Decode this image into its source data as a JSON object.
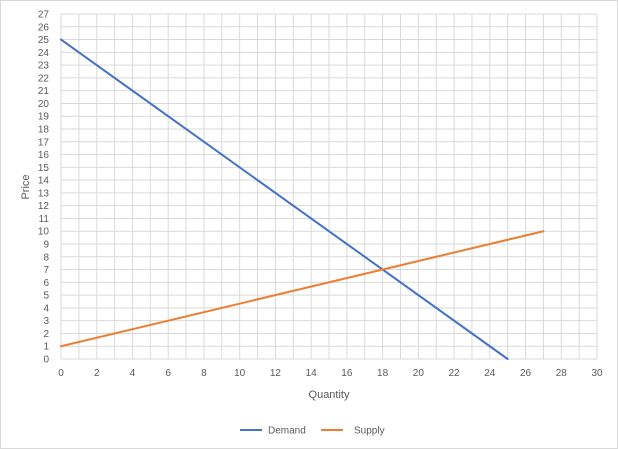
{
  "chart_data": {
    "type": "line",
    "xlabel": "Quantity",
    "ylabel": "Price",
    "xlim": [
      0,
      30
    ],
    "ylim": [
      0,
      27
    ],
    "x_ticks": [
      0,
      2,
      4,
      6,
      8,
      10,
      12,
      14,
      16,
      18,
      20,
      22,
      24,
      26,
      28,
      30
    ],
    "y_ticks": [
      0,
      1,
      2,
      3,
      4,
      5,
      6,
      7,
      8,
      9,
      10,
      11,
      12,
      13,
      14,
      15,
      16,
      17,
      18,
      19,
      20,
      21,
      22,
      23,
      24,
      25,
      26,
      27
    ],
    "grid": true,
    "legend_position": "bottom",
    "series": [
      {
        "name": "Demand",
        "color": "#4472c4",
        "x": [
          0,
          25
        ],
        "y": [
          25,
          0
        ]
      },
      {
        "name": "Supply",
        "color": "#ed7d31",
        "x": [
          0,
          27
        ],
        "y": [
          1,
          10
        ]
      }
    ]
  }
}
